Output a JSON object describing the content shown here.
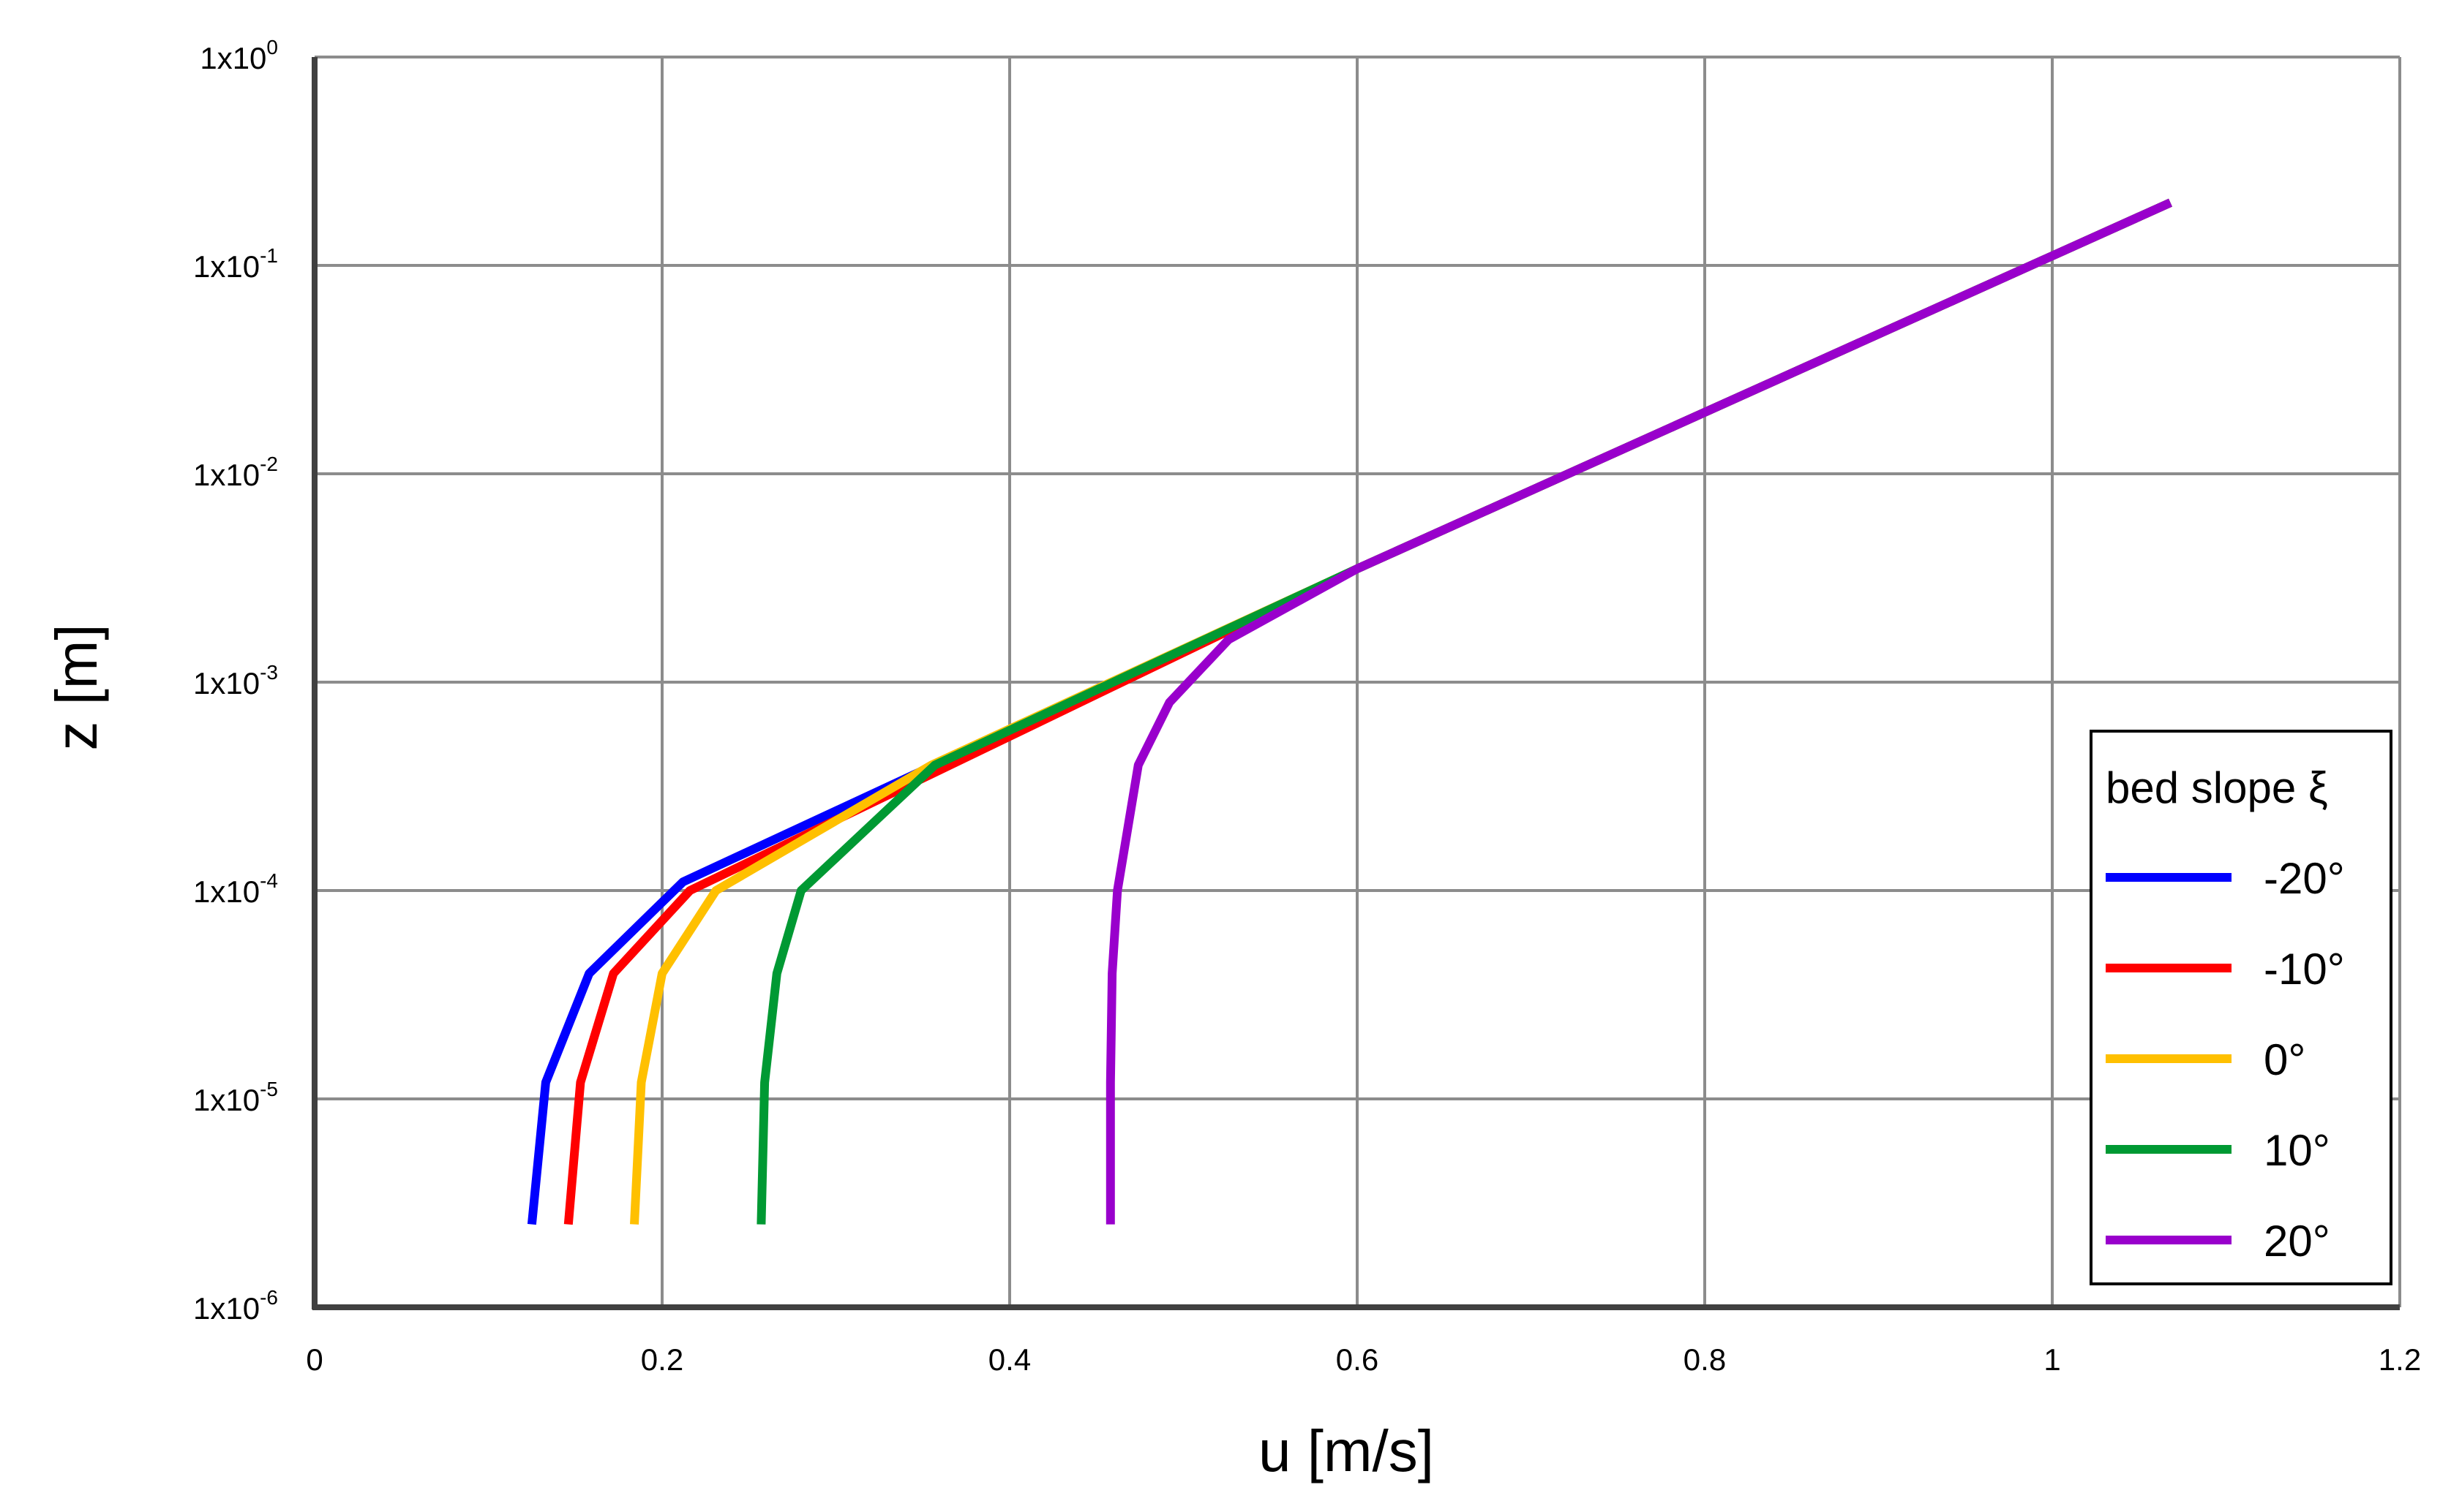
{
  "chart_data": {
    "type": "line",
    "xlabel": "u [m/s]",
    "ylabel": "z [m]",
    "xlim": [
      0,
      1.2
    ],
    "ylim": [
      1e-06,
      1
    ],
    "y_scale": "log",
    "grid": true,
    "x_ticks": [
      "0",
      "0.2",
      "0.4",
      "0.6",
      "0.8",
      "1",
      "1.2"
    ],
    "y_ticks": [
      {
        "base": "1x10",
        "exp": "-6"
      },
      {
        "base": "1x10",
        "exp": "-5"
      },
      {
        "base": "1x10",
        "exp": "-4"
      },
      {
        "base": "1x10",
        "exp": "-3"
      },
      {
        "base": "1x10",
        "exp": "-2"
      },
      {
        "base": "1x10",
        "exp": "-1"
      },
      {
        "base": "1x10",
        "exp": "0"
      }
    ],
    "legend": {
      "title": "bed slope ξ",
      "position": "right"
    },
    "series": [
      {
        "name": "-20°",
        "color": "#0000ff",
        "x": [
          0.125,
          0.133,
          0.158,
          0.212,
          0.6,
          1.068
        ],
        "y": [
          2.5e-06,
          1.2e-05,
          4e-05,
          0.00011,
          0.0035,
          0.2
        ]
      },
      {
        "name": "-10°",
        "color": "#ff0000",
        "x": [
          0.146,
          0.153,
          0.172,
          0.216,
          0.6,
          1.068
        ],
        "y": [
          2.5e-06,
          1.2e-05,
          4e-05,
          0.0001,
          0.0035,
          0.2
        ]
      },
      {
        "name": "0°",
        "color": "#ffc000",
        "x": [
          0.184,
          0.188,
          0.2,
          0.231,
          0.355,
          0.6,
          1.068
        ],
        "y": [
          2.5e-06,
          1.2e-05,
          4e-05,
          0.0001,
          0.0004,
          0.0035,
          0.2
        ]
      },
      {
        "name": "10°",
        "color": "#009933",
        "x": [
          0.257,
          0.259,
          0.266,
          0.28,
          0.357,
          0.6,
          1.068
        ],
        "y": [
          2.5e-06,
          1.2e-05,
          4e-05,
          0.0001,
          0.0004,
          0.0035,
          0.2
        ]
      },
      {
        "name": "20°",
        "color": "#9900cc",
        "x": [
          0.458,
          0.458,
          0.459,
          0.462,
          0.474,
          0.492,
          0.526,
          0.6,
          1.068
        ],
        "y": [
          2.5e-06,
          1.2e-05,
          4e-05,
          0.0001,
          0.0004,
          0.0008,
          0.0016,
          0.0035,
          0.2
        ]
      }
    ]
  }
}
